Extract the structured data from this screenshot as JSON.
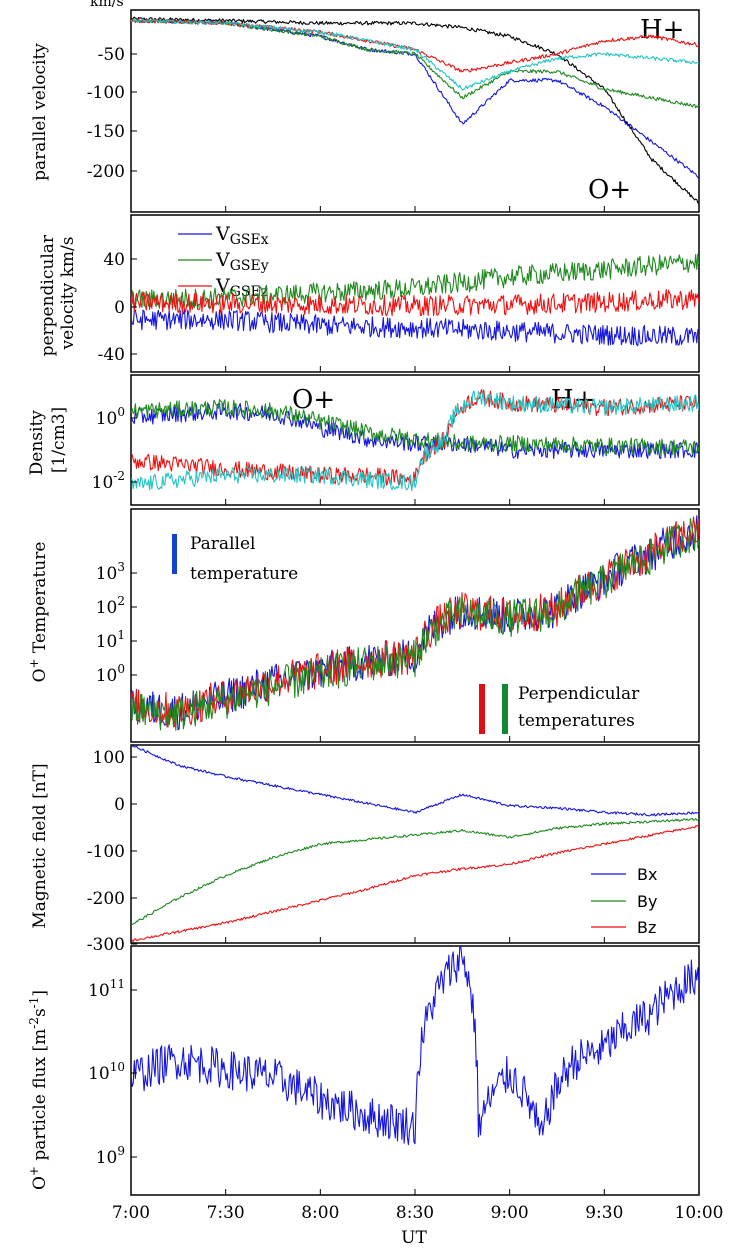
{
  "colors": {
    "blue": "#1515e0",
    "green": "#1f8a1f",
    "red": "#ee1111",
    "cyan": "#22c4c4",
    "black": "#000000",
    "marker_blue": "#1144cc",
    "marker_red": "#dd1111",
    "marker_green": "#118833"
  },
  "xaxis": {
    "label": "UT",
    "ticks": [
      "7:00",
      "7:30",
      "8:00",
      "8:30",
      "9:00",
      "9:30",
      "10:00"
    ]
  },
  "chart_data": [
    {
      "type": "line",
      "panel": "parallel-velocity",
      "ylabel": "parallel velocity",
      "yunit": "km/s",
      "x_range": [
        "7:00",
        "10:00"
      ],
      "ylim": [
        -240,
        -10
      ],
      "yticks": [
        "-50",
        "-100",
        "-150",
        "-200"
      ],
      "annotations": [
        "H+",
        "O+"
      ],
      "series": [
        {
          "color": "black",
          "x": [
            "7:00",
            "7:30",
            "8:00",
            "8:30",
            "8:45",
            "9:00",
            "9:15",
            "9:30",
            "9:45",
            "10:00"
          ],
          "values": [
            -20,
            -22,
            -25,
            -25,
            -30,
            -40,
            -60,
            -100,
            -180,
            -230
          ]
        },
        {
          "color": "blue",
          "x": [
            "7:00",
            "7:30",
            "8:00",
            "8:15",
            "8:30",
            "8:45",
            "9:00",
            "9:15",
            "9:30",
            "9:45",
            "10:00"
          ],
          "values": [
            -22,
            -25,
            -40,
            -55,
            -60,
            -140,
            -90,
            -90,
            -120,
            -160,
            -200
          ]
        },
        {
          "color": "green",
          "x": [
            "7:00",
            "7:30",
            "8:00",
            "8:15",
            "8:30",
            "8:45",
            "9:00",
            "9:15",
            "9:30",
            "9:45",
            "10:00"
          ],
          "values": [
            -22,
            -25,
            -40,
            -55,
            -60,
            -110,
            -80,
            -80,
            -100,
            -110,
            -120
          ]
        },
        {
          "color": "red",
          "x": [
            "7:00",
            "7:30",
            "8:00",
            "8:30",
            "8:45",
            "9:00",
            "9:15",
            "9:30",
            "9:45",
            "10:00"
          ],
          "values": [
            -22,
            -25,
            -35,
            -55,
            -80,
            -70,
            -60,
            -45,
            -40,
            -50
          ]
        },
        {
          "color": "cyan",
          "x": [
            "7:00",
            "7:30",
            "8:00",
            "8:30",
            "8:45",
            "9:00",
            "9:15",
            "9:30",
            "9:45",
            "10:00"
          ],
          "values": [
            -22,
            -25,
            -35,
            -55,
            -100,
            -80,
            -65,
            -60,
            -65,
            -70
          ]
        }
      ]
    },
    {
      "type": "line",
      "panel": "perpendicular-velocity",
      "ylabel": [
        "perpendicular",
        "velocity km/s"
      ],
      "x_range": [
        "7:00",
        "10:00"
      ],
      "ylim": [
        -60,
        75
      ],
      "yticks": [
        "40",
        "0",
        "-40"
      ],
      "legend": {
        "placement": "top-left",
        "entries": [
          {
            "base": "V",
            "sub": "GSEx",
            "color": "blue"
          },
          {
            "base": "V",
            "sub": "GSEy",
            "color": "green"
          },
          {
            "base": "V",
            "sub": "GSEz",
            "color": "red"
          }
        ]
      },
      "series": [
        {
          "color": "blue",
          "x": [
            "7:00",
            "7:30",
            "8:00",
            "8:30",
            "9:00",
            "9:30",
            "10:00"
          ],
          "values": [
            -15,
            -15,
            -20,
            -22,
            -25,
            -28,
            -30
          ]
        },
        {
          "color": "green",
          "x": [
            "7:00",
            "7:30",
            "8:00",
            "8:30",
            "9:00",
            "9:30",
            "10:00"
          ],
          "values": [
            2,
            4,
            8,
            12,
            22,
            28,
            35
          ]
        },
        {
          "color": "red",
          "x": [
            "7:00",
            "7:30",
            "8:00",
            "8:30",
            "9:00",
            "9:30",
            "10:00"
          ],
          "values": [
            0,
            -1,
            -2,
            -3,
            -2,
            0,
            3
          ]
        }
      ]
    },
    {
      "type": "line",
      "panel": "density",
      "ylabel": [
        "Density",
        "[1/cm3]"
      ],
      "yscale": "log",
      "x_range": [
        "7:00",
        "10:00"
      ],
      "ylim": [
        0.003,
        12
      ],
      "yticks": [
        {
          "base": "10",
          "exp": "0"
        },
        {
          "base": "10",
          "exp": "-2"
        }
      ],
      "annotations": [
        "O+",
        "H+"
      ],
      "series": [
        {
          "color": "blue",
          "x": [
            "7:00",
            "7:30",
            "7:45",
            "8:00",
            "8:15",
            "8:30",
            "8:45",
            "9:00",
            "9:30",
            "10:00"
          ],
          "values": [
            0.8,
            1.2,
            1.0,
            0.4,
            0.2,
            0.15,
            0.15,
            0.1,
            0.1,
            0.1
          ]
        },
        {
          "color": "green",
          "x": [
            "7:00",
            "7:30",
            "7:45",
            "8:00",
            "8:15",
            "8:30",
            "8:45",
            "9:00",
            "9:30",
            "10:00"
          ],
          "values": [
            1.2,
            1.5,
            1.2,
            0.6,
            0.3,
            0.2,
            0.15,
            0.15,
            0.13,
            0.12
          ]
        },
        {
          "color": "red",
          "x": [
            "7:00",
            "7:30",
            "8:00",
            "8:15",
            "8:30",
            "8:40",
            "8:50",
            "9:00",
            "9:30",
            "10:00"
          ],
          "values": [
            0.05,
            0.03,
            0.02,
            0.02,
            0.015,
            0.2,
            3,
            2,
            1.5,
            2
          ]
        },
        {
          "color": "cyan",
          "x": [
            "7:00",
            "7:30",
            "8:00",
            "8:15",
            "8:30",
            "8:40",
            "8:50",
            "9:00",
            "9:30",
            "10:00"
          ],
          "values": [
            0.01,
            0.02,
            0.02,
            0.015,
            0.012,
            0.2,
            3,
            2,
            1.5,
            2
          ]
        }
      ]
    },
    {
      "type": "line",
      "panel": "oxygen-temperature",
      "ylabel": {
        "pre": "O",
        "sup": "+",
        "post": " Temperature"
      },
      "yscale": "log",
      "x_range": [
        "7:00",
        "10:00"
      ],
      "ylim": [
        0.2,
        8000
      ],
      "yticks": [
        {
          "base": "10",
          "exp": "3"
        },
        {
          "base": "10",
          "exp": "2"
        },
        {
          "base": "10",
          "exp": "1"
        },
        {
          "base": "10",
          "exp": "0"
        }
      ],
      "legend_labels": {
        "parallel": [
          "Parallel",
          "temperature"
        ],
        "perpendicular": [
          "Perpendicular",
          "temperatures"
        ]
      },
      "series": [
        {
          "color": "blue",
          "x": [
            "7:00",
            "7:15",
            "7:30",
            "7:45",
            "8:00",
            "8:15",
            "8:30",
            "8:45",
            "9:00",
            "9:15",
            "9:30",
            "9:45",
            "10:00"
          ],
          "values": [
            1,
            0.8,
            1.5,
            3,
            5,
            8,
            10,
            80,
            60,
            80,
            300,
            1000,
            3000
          ]
        },
        {
          "color": "red",
          "x": [
            "7:00",
            "7:15",
            "7:30",
            "7:45",
            "8:00",
            "8:15",
            "8:30",
            "8:45",
            "9:00",
            "9:15",
            "9:30",
            "9:45",
            "10:00"
          ],
          "values": [
            1,
            0.8,
            1.5,
            3,
            5,
            8,
            10,
            80,
            60,
            80,
            300,
            1000,
            3000
          ]
        },
        {
          "color": "green",
          "x": [
            "7:00",
            "7:15",
            "7:30",
            "7:45",
            "8:00",
            "8:15",
            "8:30",
            "8:45",
            "9:00",
            "9:15",
            "9:30",
            "9:45",
            "10:00"
          ],
          "values": [
            0.9,
            0.7,
            1.3,
            2.5,
            4,
            7,
            9,
            70,
            55,
            75,
            280,
            900,
            2800
          ]
        }
      ]
    },
    {
      "type": "line",
      "panel": "magnetic-field",
      "ylabel": "Magnetic field [nT]",
      "x_range": [
        "7:00",
        "10:00"
      ],
      "ylim": [
        -310,
        130
      ],
      "yticks": [
        "100",
        "0",
        "-100",
        "-200",
        "-300"
      ],
      "legend": {
        "placement": "bottom-right",
        "entries": [
          {
            "label": "Bx",
            "color": "blue"
          },
          {
            "label": "By",
            "color": "green"
          },
          {
            "label": "Bz",
            "color": "red"
          }
        ]
      },
      "series": [
        {
          "color": "blue",
          "x": [
            "7:00",
            "7:15",
            "7:30",
            "7:45",
            "8:00",
            "8:15",
            "8:30",
            "8:45",
            "9:00",
            "9:15",
            "9:30",
            "9:45",
            "10:00"
          ],
          "values": [
            130,
            85,
            60,
            40,
            20,
            0,
            -20,
            20,
            -5,
            -10,
            -20,
            -25,
            -20
          ]
        },
        {
          "color": "green",
          "x": [
            "7:00",
            "7:15",
            "7:30",
            "7:45",
            "8:00",
            "8:15",
            "8:30",
            "8:45",
            "9:00",
            "9:15",
            "9:30",
            "9:45",
            "10:00"
          ],
          "values": [
            -270,
            -210,
            -160,
            -120,
            -90,
            -80,
            -70,
            -60,
            -75,
            -55,
            -45,
            -40,
            -35
          ]
        },
        {
          "color": "red",
          "x": [
            "7:00",
            "7:15",
            "7:30",
            "7:45",
            "8:00",
            "8:15",
            "8:30",
            "8:45",
            "9:00",
            "9:15",
            "9:30",
            "9:45",
            "10:00"
          ],
          "values": [
            -305,
            -285,
            -265,
            -240,
            -215,
            -190,
            -160,
            -145,
            -135,
            -110,
            -90,
            -70,
            -50
          ]
        }
      ]
    },
    {
      "type": "line",
      "panel": "oxygen-particle-flux",
      "ylabel": {
        "pre": "O",
        "sup": "+",
        "post": " particle flux [m",
        "sup2": "-2",
        "mid": "s",
        "sup3": "-1",
        "end": "]"
      },
      "yscale": "log",
      "x_range": [
        "7:00",
        "10:00"
      ],
      "ylim": [
        1000000000.0,
        160000000000.0
      ],
      "yticks": [
        {
          "base": "10",
          "exp": "11"
        },
        {
          "base": "10",
          "exp": "10"
        },
        {
          "base": "10",
          "exp": "9"
        }
      ],
      "series": [
        {
          "color": "blue",
          "x": [
            "7:00",
            "7:15",
            "7:30",
            "7:45",
            "8:00",
            "8:15",
            "8:30",
            "8:45",
            "8:50",
            "9:00",
            "9:10",
            "9:20",
            "9:30",
            "9:45",
            "10:00"
          ],
          "values": [
            11000000000.0,
            16000000000.0,
            13000000000.0,
            11000000000.0,
            7000000000.0,
            5000000000.0,
            4000000000.0,
            130000000000.0,
            4000000000.0,
            12000000000.0,
            3000000000.0,
            15000000000.0,
            20000000000.0,
            40000000000.0,
            90000000000.0
          ]
        }
      ]
    }
  ]
}
